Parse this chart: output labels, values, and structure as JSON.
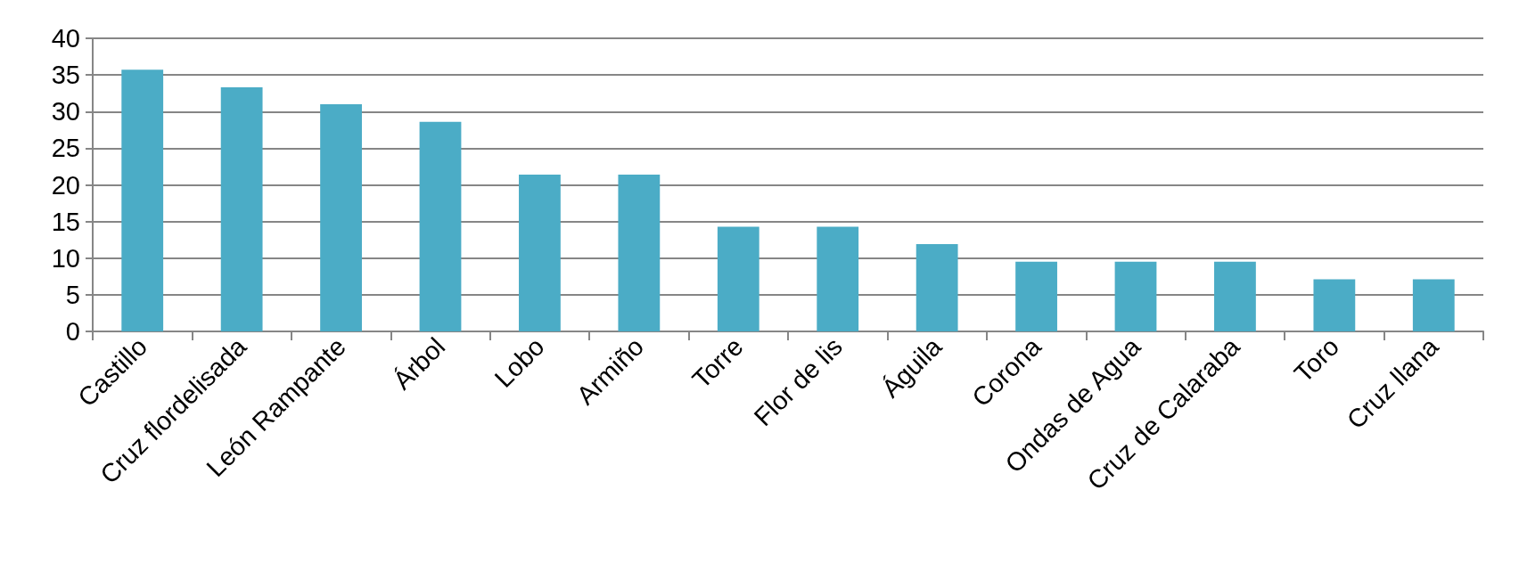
{
  "chart_data": {
    "type": "bar",
    "categories": [
      "Castillo",
      "Cruz flordelisada",
      "León Rampante",
      "Árbol",
      "Lobo",
      "Armiño",
      "Torre",
      "Flor de lis",
      "Águila",
      "Corona",
      "Ondas de Agua",
      "Cruz de Calaraba",
      "Toro",
      "Cruz llana"
    ],
    "values": [
      35.7,
      33.3,
      31.0,
      28.6,
      21.4,
      21.4,
      14.3,
      14.3,
      11.9,
      9.5,
      9.5,
      9.5,
      7.1,
      7.1
    ],
    "color": "#4bacc6",
    "ylim": [
      0,
      40
    ],
    "yticks": [
      0,
      5,
      10,
      15,
      20,
      25,
      30,
      35,
      40
    ],
    "grid": "y"
  }
}
